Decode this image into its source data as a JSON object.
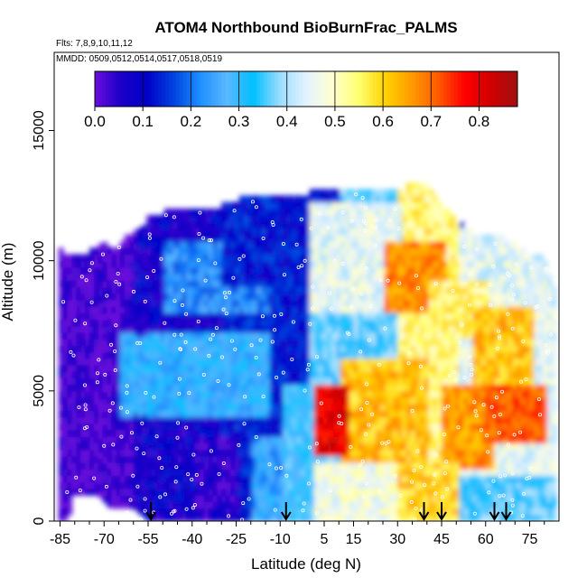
{
  "chart_data": {
    "type": "heatmap",
    "title": "ATOM4 Northbound BioBurnFrac_PALMS",
    "subtitle_flights": "Flts: 7,8,9,10,11,12",
    "subtitle_dates": "MMDD: 0509,0512,0514,0517,0518,0519",
    "xlabel": "Latitude (deg N)",
    "ylabel": "Altitude (m)",
    "xlim": [
      -87,
      85
    ],
    "ylim": [
      0,
      18000
    ],
    "x_ticks": [
      -85,
      -70,
      -55,
      -40,
      -25,
      -10,
      5,
      15,
      30,
      45,
      60,
      75
    ],
    "x_minor_ticks": [
      -80,
      -75,
      -65,
      -60,
      -50,
      -45,
      -35,
      -30,
      -20,
      -15,
      -5,
      0,
      10,
      20,
      25,
      35,
      40,
      50,
      55,
      65,
      70,
      80
    ],
    "y_ticks": [
      0,
      5000,
      10000,
      15000
    ],
    "colorbar": {
      "min": 0,
      "max": 0.88,
      "ticks": [
        0.0,
        0.1,
        0.2,
        0.3,
        0.4,
        0.5,
        0.6,
        0.7,
        0.8
      ],
      "tick_labels": [
        "0.0",
        "0.1",
        "0.2",
        "0.3",
        "0.4",
        "0.5",
        "0.6",
        "0.7",
        "0.8"
      ],
      "colors": [
        "#6a0ddb",
        "#1a00c8",
        "#0000c8",
        "#0044e0",
        "#1e90ff",
        "#5ab8ff",
        "#00bfff",
        "#9adcff",
        "#e4f2ff",
        "#ffffd0",
        "#ffff70",
        "#ffd200",
        "#ff9a00",
        "#ff5a00",
        "#ff0000",
        "#d00000",
        "#a01010"
      ]
    },
    "arrow_latitudes": [
      -54,
      -8,
      39,
      45,
      63,
      67
    ],
    "top_profile": [
      [
        -86,
        10400
      ],
      [
        -80,
        10000
      ],
      [
        -70,
        10500
      ],
      [
        -65,
        10500
      ],
      [
        -60,
        11000
      ],
      [
        -55,
        11500
      ],
      [
        -48,
        11800
      ],
      [
        -40,
        12000
      ],
      [
        -30,
        12000
      ],
      [
        -20,
        12400
      ],
      [
        -10,
        12500
      ],
      [
        0,
        12500
      ],
      [
        10,
        12600
      ],
      [
        20,
        12700
      ],
      [
        30,
        12700
      ],
      [
        35,
        12800
      ],
      [
        40,
        12800
      ],
      [
        45,
        12000
      ],
      [
        50,
        11500
      ],
      [
        55,
        11000
      ],
      [
        60,
        10800
      ],
      [
        65,
        10800
      ],
      [
        70,
        10500
      ],
      [
        75,
        10200
      ],
      [
        80,
        10000
      ],
      [
        83,
        9000
      ]
    ],
    "bottom_profile": [
      [
        -86,
        0
      ],
      [
        -82,
        0
      ],
      [
        -81,
        1000
      ],
      [
        -75,
        1000
      ],
      [
        -72,
        1000
      ],
      [
        -68,
        500
      ],
      [
        -60,
        500
      ],
      [
        -55,
        0
      ],
      [
        85,
        0
      ]
    ],
    "regions": [
      {
        "lat": [
          -86,
          -60
        ],
        "alt": [
          0,
          11000
        ],
        "value": 0.03
      },
      {
        "lat": [
          -60,
          -30
        ],
        "alt": [
          0,
          12000
        ],
        "value": 0.08
      },
      {
        "lat": [
          -30,
          0
        ],
        "alt": [
          0,
          12500
        ],
        "value": 0.12
      },
      {
        "lat": [
          0,
          30
        ],
        "alt": [
          0,
          12700
        ],
        "value": 0.35
      },
      {
        "lat": [
          30,
          50
        ],
        "alt": [
          0,
          12800
        ],
        "value": 0.55
      },
      {
        "lat": [
          50,
          85
        ],
        "alt": [
          0,
          11000
        ],
        "value": 0.45
      },
      {
        "lat": [
          -65,
          -15
        ],
        "alt": [
          4000,
          7000
        ],
        "value": 0.28
      },
      {
        "lat": [
          -50,
          -15
        ],
        "alt": [
          8000,
          10500
        ],
        "value": 0.22
      },
      {
        "lat": [
          -30,
          10
        ],
        "alt": [
          9000,
          12500
        ],
        "value": 0.12
      },
      {
        "lat": [
          0,
          30
        ],
        "alt": [
          8000,
          12000
        ],
        "value": 0.45
      },
      {
        "lat": [
          25,
          45
        ],
        "alt": [
          8000,
          10500
        ],
        "value": 0.68
      },
      {
        "lat": [
          40,
          60
        ],
        "alt": [
          7000,
          9000
        ],
        "value": 0.55
      },
      {
        "lat": [
          55,
          75
        ],
        "alt": [
          5000,
          8000
        ],
        "value": 0.62
      },
      {
        "lat": [
          10,
          40
        ],
        "alt": [
          2000,
          6000
        ],
        "value": 0.62
      },
      {
        "lat": [
          0,
          12
        ],
        "alt": [
          2500,
          5000
        ],
        "value": 0.8
      },
      {
        "lat": [
          45,
          62
        ],
        "alt": [
          2000,
          5000
        ],
        "value": 0.66
      },
      {
        "lat": [
          60,
          80
        ],
        "alt": [
          3000,
          5000
        ],
        "value": 0.72
      },
      {
        "lat": [
          0,
          30
        ],
        "alt": [
          0,
          2000
        ],
        "value": 0.48
      },
      {
        "lat": [
          30,
          50
        ],
        "alt": [
          0,
          2000
        ],
        "value": 0.6
      },
      {
        "lat": [
          50,
          85
        ],
        "alt": [
          0,
          1500
        ],
        "value": 0.35
      },
      {
        "lat": [
          -40,
          -25
        ],
        "alt": [
          0,
          3000
        ],
        "value": 0.06
      },
      {
        "lat": [
          -20,
          -5
        ],
        "alt": [
          0,
          3000
        ],
        "value": 0.25
      },
      {
        "lat": [
          -10,
          0
        ],
        "alt": [
          0,
          5000
        ],
        "value": 0.32
      }
    ]
  }
}
